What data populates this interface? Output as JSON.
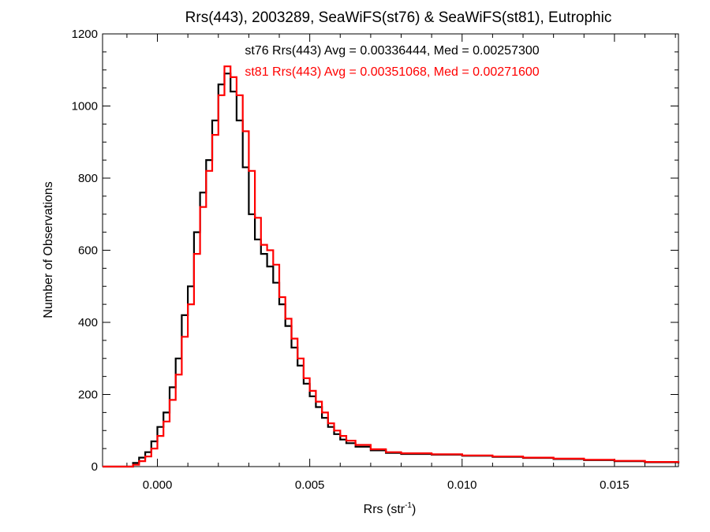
{
  "chart_data": {
    "type": "line",
    "title": "Rrs(443), 2003289, SeaWiFS(st76) & SeaWiFS(st81), Eutrophic",
    "xlabel_main": "Rrs (str",
    "xlabel_sup": "-1",
    "xlabel_close": ")",
    "ylabel": "Number of Observations",
    "xlim": [
      -0.0018,
      0.0171
    ],
    "ylim": [
      0,
      1200
    ],
    "xticks": [
      0.0,
      0.005,
      0.01,
      0.015
    ],
    "xtick_labels": [
      "0.000",
      "0.005",
      "0.010",
      "0.015"
    ],
    "yticks": [
      0,
      200,
      400,
      600,
      800,
      1000,
      1200
    ],
    "ytick_labels": [
      "0",
      "200",
      "400",
      "600",
      "800",
      "1000",
      "1200"
    ],
    "grid": false,
    "annotations": [
      "st76 Rrs(443) Avg = 0.00336444, Med = 0.00257300",
      "st81 Rrs(443) Avg = 0.00351068, Med = 0.00271600"
    ],
    "series": [
      {
        "label": "st76",
        "color": "#000000",
        "points": [
          [
            -0.0018,
            0
          ],
          [
            -0.001,
            0
          ],
          [
            -0.0008,
            10
          ],
          [
            -0.0006,
            25
          ],
          [
            -0.0004,
            40
          ],
          [
            -0.0002,
            70
          ],
          [
            0.0,
            110
          ],
          [
            0.0002,
            150
          ],
          [
            0.0004,
            220
          ],
          [
            0.0006,
            300
          ],
          [
            0.0008,
            420
          ],
          [
            0.001,
            500
          ],
          [
            0.0012,
            650
          ],
          [
            0.0014,
            760
          ],
          [
            0.0016,
            850
          ],
          [
            0.0018,
            960
          ],
          [
            0.002,
            1060
          ],
          [
            0.0022,
            1090
          ],
          [
            0.0024,
            1040
          ],
          [
            0.0026,
            960
          ],
          [
            0.0028,
            830
          ],
          [
            0.003,
            700
          ],
          [
            0.0032,
            630
          ],
          [
            0.0034,
            590
          ],
          [
            0.0036,
            555
          ],
          [
            0.0038,
            510
          ],
          [
            0.004,
            450
          ],
          [
            0.0042,
            390
          ],
          [
            0.0044,
            330
          ],
          [
            0.0046,
            280
          ],
          [
            0.0048,
            230
          ],
          [
            0.005,
            195
          ],
          [
            0.0052,
            165
          ],
          [
            0.0054,
            135
          ],
          [
            0.0056,
            110
          ],
          [
            0.0058,
            90
          ],
          [
            0.006,
            75
          ],
          [
            0.0062,
            65
          ],
          [
            0.0065,
            55
          ],
          [
            0.007,
            45
          ],
          [
            0.0075,
            38
          ],
          [
            0.008,
            35
          ],
          [
            0.009,
            33
          ],
          [
            0.01,
            30
          ],
          [
            0.011,
            27
          ],
          [
            0.012,
            24
          ],
          [
            0.013,
            21
          ],
          [
            0.014,
            18
          ],
          [
            0.015,
            15
          ],
          [
            0.016,
            12
          ],
          [
            0.0171,
            9
          ]
        ]
      },
      {
        "label": "st81",
        "color": "#ff0000",
        "points": [
          [
            -0.0018,
            0
          ],
          [
            -0.001,
            0
          ],
          [
            -0.0008,
            5
          ],
          [
            -0.0006,
            15
          ],
          [
            -0.0004,
            28
          ],
          [
            -0.0002,
            50
          ],
          [
            0.0,
            85
          ],
          [
            0.0002,
            125
          ],
          [
            0.0004,
            185
          ],
          [
            0.0006,
            255
          ],
          [
            0.0008,
            360
          ],
          [
            0.001,
            450
          ],
          [
            0.0012,
            590
          ],
          [
            0.0014,
            720
          ],
          [
            0.0016,
            820
          ],
          [
            0.0018,
            920
          ],
          [
            0.002,
            1030
          ],
          [
            0.0022,
            1110
          ],
          [
            0.0024,
            1080
          ],
          [
            0.0026,
            1030
          ],
          [
            0.0028,
            930
          ],
          [
            0.003,
            820
          ],
          [
            0.0032,
            690
          ],
          [
            0.0034,
            615
          ],
          [
            0.0036,
            600
          ],
          [
            0.0038,
            560
          ],
          [
            0.004,
            470
          ],
          [
            0.0042,
            410
          ],
          [
            0.0044,
            355
          ],
          [
            0.0046,
            300
          ],
          [
            0.0048,
            245
          ],
          [
            0.005,
            210
          ],
          [
            0.0052,
            180
          ],
          [
            0.0054,
            150
          ],
          [
            0.0056,
            120
          ],
          [
            0.0058,
            100
          ],
          [
            0.006,
            85
          ],
          [
            0.0062,
            72
          ],
          [
            0.0065,
            60
          ],
          [
            0.007,
            48
          ],
          [
            0.0075,
            40
          ],
          [
            0.008,
            37
          ],
          [
            0.009,
            34
          ],
          [
            0.01,
            31
          ],
          [
            0.011,
            28
          ],
          [
            0.012,
            25
          ],
          [
            0.013,
            22
          ],
          [
            0.014,
            19
          ],
          [
            0.015,
            16
          ],
          [
            0.016,
            13
          ],
          [
            0.0171,
            10
          ]
        ]
      }
    ]
  }
}
